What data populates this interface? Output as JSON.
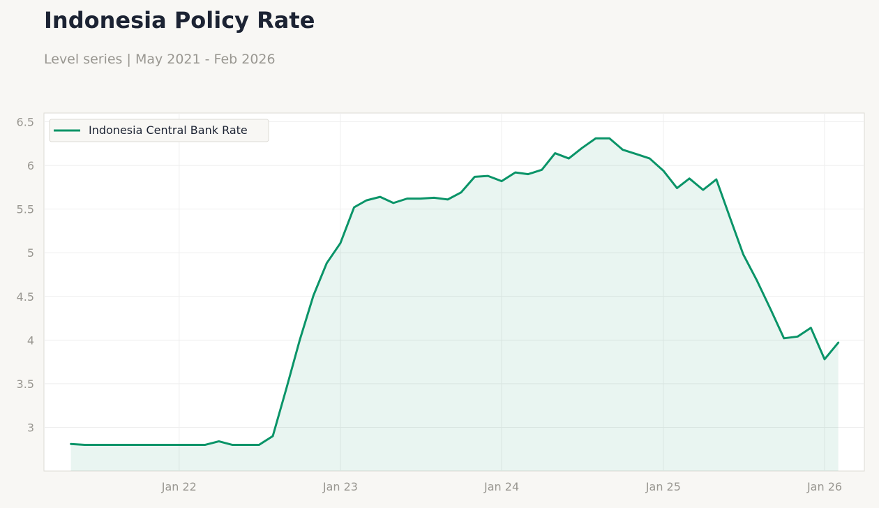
{
  "header": {
    "title": "Indonesia Policy Rate",
    "subtitle": "Level series | May 2021 - Feb 2026"
  },
  "colors": {
    "line": "#0a9468",
    "fill": "#0a9468",
    "grid": "#eeeeee",
    "tick_text": "#999791",
    "plot_border": "#dddbd5",
    "background": "#f8f7f4",
    "plot_background": "#ffffff"
  },
  "chart_data": {
    "type": "area",
    "title": "Indonesia Policy Rate",
    "subtitle": "Level series | May 2021 - Feb 2026",
    "xlabel": "",
    "ylabel": "",
    "legend_position": "top-left",
    "grid": true,
    "ylim": [
      2.5,
      6.6
    ],
    "xlim": [
      "2021-03-01",
      "2026-04-01"
    ],
    "yticks": [
      3,
      3.5,
      4,
      4.5,
      5,
      5.5,
      6,
      6.5
    ],
    "ytick_labels": [
      "3",
      "3.5",
      "4",
      "4.5",
      "5",
      "5.5",
      "6",
      "6.5"
    ],
    "xticks": [
      "2022-01-01",
      "2023-01-01",
      "2024-01-01",
      "2025-01-01",
      "2026-01-01"
    ],
    "xtick_labels": [
      "Jan 22",
      "Jan 23",
      "Jan 24",
      "Jan 25",
      "Jan 26"
    ],
    "series": [
      {
        "name": "Indonesia Central Bank Rate",
        "x": [
          "2021-05-01",
          "2021-06-01",
          "2021-07-01",
          "2021-08-01",
          "2021-09-01",
          "2021-10-01",
          "2021-11-01",
          "2021-12-01",
          "2022-01-01",
          "2022-02-01",
          "2022-03-01",
          "2022-04-01",
          "2022-05-01",
          "2022-06-01",
          "2022-07-01",
          "2022-08-01",
          "2022-09-01",
          "2022-10-01",
          "2022-11-01",
          "2022-12-01",
          "2023-01-01",
          "2023-02-01",
          "2023-03-01",
          "2023-04-01",
          "2023-05-01",
          "2023-06-01",
          "2023-07-01",
          "2023-08-01",
          "2023-09-01",
          "2023-10-01",
          "2023-11-01",
          "2023-12-01",
          "2024-01-01",
          "2024-02-01",
          "2024-03-01",
          "2024-04-01",
          "2024-05-01",
          "2024-06-01",
          "2024-07-01",
          "2024-08-01",
          "2024-09-01",
          "2024-10-01",
          "2024-11-01",
          "2024-12-01",
          "2025-01-01",
          "2025-02-01",
          "2025-03-01",
          "2025-04-01",
          "2025-05-01",
          "2025-06-01",
          "2025-07-01",
          "2025-08-01",
          "2025-09-01",
          "2025-10-01",
          "2025-11-01",
          "2025-12-01",
          "2026-01-01",
          "2026-02-01"
        ],
        "values": [
          2.81,
          2.8,
          2.8,
          2.8,
          2.8,
          2.8,
          2.8,
          2.8,
          2.8,
          2.8,
          2.8,
          2.84,
          2.8,
          2.8,
          2.8,
          2.9,
          3.45,
          4.0,
          4.51,
          4.88,
          5.11,
          5.52,
          5.6,
          5.64,
          5.57,
          5.62,
          5.62,
          5.63,
          5.61,
          5.69,
          5.87,
          5.88,
          5.82,
          5.92,
          5.9,
          5.95,
          6.14,
          6.08,
          6.2,
          6.31,
          6.31,
          6.18,
          6.13,
          6.08,
          5.94,
          5.74,
          5.85,
          5.72,
          5.84,
          5.4,
          4.98,
          4.68,
          4.35,
          4.02,
          4.04,
          4.14,
          3.78,
          3.97
        ]
      }
    ]
  }
}
